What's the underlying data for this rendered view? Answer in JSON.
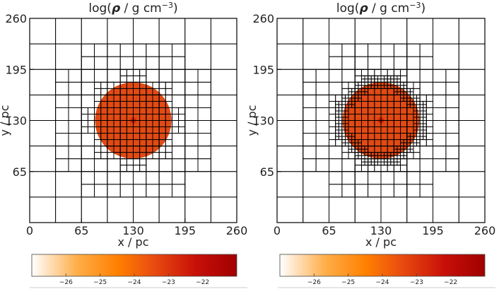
{
  "chart_data": [
    {
      "type": "heatmap",
      "title": "log(ρ / g cm⁻³)",
      "title_parts": {
        "prefix": "log(",
        "symbol": "ρ",
        "unit": " / g cm",
        "exponent": "−3",
        "suffix": ")"
      },
      "xlabel": "x / pc",
      "ylabel": "y / pc",
      "xlim": [
        0,
        260
      ],
      "ylim": [
        0,
        260
      ],
      "x_ticks": [
        0,
        65,
        130,
        195,
        260
      ],
      "y_ticks": [
        65,
        130,
        195,
        260
      ],
      "grid_lines_pc": [
        32.5,
        65,
        97.5,
        130,
        162.5,
        195,
        227.5
      ],
      "sphere": {
        "center": [
          130,
          130
        ],
        "radius": 48
      },
      "refinement": "medium",
      "colorbar": {
        "min": -27,
        "max": -21,
        "ticks": [
          -26,
          -25,
          -24,
          -23,
          -22
        ],
        "colors": [
          "#ffffff",
          "#ffae4a",
          "#ff8000",
          "#e84a10",
          "#c81008",
          "#a00000"
        ]
      }
    },
    {
      "type": "heatmap",
      "title": "log(ρ / g cm⁻³)",
      "title_parts": {
        "prefix": "log(",
        "symbol": "ρ",
        "unit": " / g cm",
        "exponent": "−3",
        "suffix": ")"
      },
      "xlabel": "x / pc",
      "ylabel": "y / pc",
      "xlim": [
        0,
        260
      ],
      "ylim": [
        0,
        260
      ],
      "x_ticks": [
        0,
        65,
        130,
        195,
        260
      ],
      "y_ticks": [
        65,
        130,
        195,
        260
      ],
      "grid_lines_pc": [
        32.5,
        65,
        97.5,
        130,
        162.5,
        195,
        227.5
      ],
      "sphere": {
        "center": [
          130,
          130
        ],
        "radius": 48
      },
      "refinement": "fine",
      "colorbar": {
        "min": -27,
        "max": -21,
        "ticks": [
          -26,
          -25,
          -24,
          -23,
          -22
        ],
        "colors": [
          "#ffffff",
          "#ffae4a",
          "#ff8000",
          "#e84a10",
          "#c81008",
          "#a00000"
        ]
      }
    }
  ]
}
